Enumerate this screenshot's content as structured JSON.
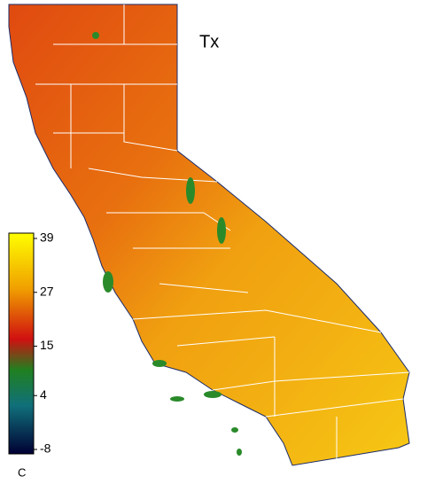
{
  "title": "Tx",
  "colorbar": {
    "lim": [
      -8,
      39
    ],
    "ticks": [
      39,
      27,
      15,
      4,
      -8
    ],
    "unit": "C"
  }
}
